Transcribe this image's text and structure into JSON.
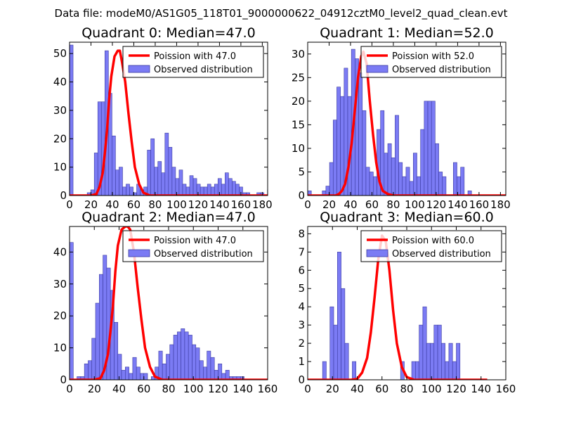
{
  "figure": {
    "suptitle": "Data file: modeM0/AS1G05_118T01_9000000622_04912cztM0_level2_quad_clean.evt"
  },
  "colors": {
    "hist_fill": "#7b7bf4",
    "hist_edge": "#3a3aa0",
    "poisson_line": "#ff0000",
    "axes": "#000000",
    "legend_edge": "#000000"
  },
  "chart_data": [
    {
      "type": "bar",
      "title": "Quadrant 0: Median=47.0",
      "xlim": [
        0,
        185
      ],
      "ylim": [
        0,
        54
      ],
      "xticks": [
        0,
        20,
        40,
        60,
        80,
        100,
        120,
        140,
        160,
        180
      ],
      "yticks": [
        0,
        10,
        20,
        30,
        40,
        50
      ],
      "legend": [
        "Poission with 47.0",
        "Observed distribution"
      ],
      "hist": {
        "name": "Observed distribution",
        "bin_width": 3.3,
        "values": [
          53,
          0,
          0,
          0,
          0,
          1,
          2,
          15,
          33,
          33,
          51,
          36,
          21,
          9,
          10,
          3,
          4,
          3,
          1,
          4,
          2,
          3,
          16,
          20,
          10,
          12,
          8,
          22,
          17,
          10,
          6,
          9,
          4,
          3,
          7,
          6,
          4,
          3,
          3,
          4,
          3,
          4,
          6,
          4,
          8,
          6,
          5,
          4,
          3,
          1,
          1,
          0,
          0,
          1,
          1,
          0,
          2,
          1,
          0,
          0,
          0,
          0,
          1,
          0,
          0,
          0,
          1,
          0,
          0
        ]
      },
      "poisson": {
        "name": "Poission with 47.0",
        "mean": 47.0,
        "x": [
          0,
          20,
          25,
          28,
          31,
          33,
          35,
          37,
          39,
          42,
          45,
          47,
          49,
          52,
          55,
          58,
          61,
          65,
          69,
          75,
          185
        ],
        "y": [
          0,
          0,
          0.5,
          3,
          8,
          15,
          23,
          34,
          42,
          49,
          51,
          51,
          47,
          40,
          29,
          19,
          10,
          4,
          1,
          0,
          0
        ]
      }
    },
    {
      "type": "bar",
      "title": "Quadrant 1: Median=52.0",
      "xlim": [
        0,
        185
      ],
      "ylim": [
        0,
        32.5
      ],
      "xticks": [
        0,
        20,
        40,
        60,
        80,
        100,
        120,
        140,
        160,
        180
      ],
      "yticks": [
        0,
        5,
        10,
        15,
        20,
        25,
        30
      ],
      "legend": [
        "Poission with 52.0",
        "Observed distribution"
      ],
      "hist": {
        "name": "Observed distribution",
        "bin_width": 3.4,
        "values": [
          1,
          0,
          0,
          0,
          1,
          2,
          7,
          16,
          23,
          21,
          27,
          21,
          31,
          29,
          26,
          18,
          6,
          5,
          4,
          14,
          18,
          9,
          11,
          8,
          17,
          7,
          4,
          6,
          3,
          9,
          4,
          14,
          20,
          20,
          20,
          11,
          5,
          4,
          0,
          0,
          7,
          4,
          6,
          0,
          1,
          0,
          0,
          0,
          0,
          0
        ]
      },
      "poisson": {
        "name": "Poission with 52.0",
        "mean": 52.0,
        "x": [
          0,
          26,
          29,
          32,
          35,
          38,
          41,
          44,
          47,
          50,
          52,
          55,
          58,
          61,
          64,
          67,
          70,
          75,
          80,
          185
        ],
        "y": [
          0,
          0,
          0.3,
          1,
          2.5,
          6,
          11,
          18,
          25,
          29.5,
          30.5,
          28,
          20,
          13,
          7,
          3,
          1,
          0.3,
          0,
          0
        ]
      }
    },
    {
      "type": "bar",
      "title": "Quadrant 2: Median=47.0",
      "xlim": [
        0,
        160
      ],
      "ylim": [
        0,
        48
      ],
      "xticks": [
        0,
        20,
        40,
        60,
        80,
        100,
        120,
        140,
        160
      ],
      "yticks": [
        0,
        10,
        20,
        30,
        40
      ],
      "legend": [
        "Poission with 47.0",
        "Observed distribution"
      ],
      "hist": {
        "name": "Observed distribution",
        "bin_width": 3.0,
        "values": [
          43,
          0,
          1,
          1,
          5,
          6,
          13,
          24,
          33,
          39,
          35,
          28,
          18,
          8,
          3,
          4,
          2,
          7,
          4,
          2,
          2,
          0,
          1,
          4,
          9,
          5,
          8,
          11,
          14,
          15,
          16,
          15,
          14,
          11,
          10,
          6,
          4,
          9,
          7,
          3,
          5,
          2,
          3,
          1,
          1,
          1,
          1
        ]
      },
      "poisson": {
        "name": "Poission with 47.0",
        "mean": 47.0,
        "x": [
          0,
          20,
          25,
          28,
          31,
          33,
          35,
          37,
          39,
          42,
          45,
          47,
          49,
          52,
          55,
          58,
          61,
          65,
          69,
          75,
          160
        ],
        "y": [
          0,
          0,
          0.5,
          3,
          8,
          15,
          23,
          34,
          42,
          47,
          48,
          48,
          47,
          40,
          29,
          19,
          10,
          4,
          1,
          0,
          0
        ]
      }
    },
    {
      "type": "bar",
      "title": "Quadrant 3: Median=60.0",
      "xlim": [
        0,
        160
      ],
      "ylim": [
        0,
        8.4
      ],
      "xticks": [
        0,
        20,
        40,
        60,
        80,
        100,
        120,
        140,
        160
      ],
      "yticks": [
        0,
        1,
        2,
        3,
        4,
        5,
        6,
        7,
        8
      ],
      "legend": [
        "Poission with 60.0",
        "Observed distribution"
      ],
      "hist": {
        "name": "Observed distribution",
        "bin_width": 3.0,
        "values": [
          0,
          0,
          0,
          0,
          1,
          0,
          4,
          3,
          7,
          5,
          2,
          0,
          1,
          0,
          0,
          0,
          0,
          0,
          0,
          0,
          0,
          0,
          0,
          0,
          0,
          1,
          0,
          0,
          1,
          1,
          3,
          4,
          2,
          2,
          3,
          3,
          2,
          1,
          2,
          1,
          2,
          0,
          0,
          0,
          0,
          0,
          0
        ]
      },
      "poisson": {
        "name": "Poission with 60.0",
        "mean": 60.0,
        "x": [
          0,
          35,
          40,
          44,
          48,
          51,
          54,
          57,
          60,
          63,
          66,
          69,
          72,
          76,
          80,
          86,
          145
        ],
        "y": [
          0,
          0,
          0.05,
          0.4,
          1.2,
          2.6,
          4.5,
          6.6,
          7.9,
          7.6,
          6,
          3.8,
          2,
          0.7,
          0.15,
          0,
          0
        ]
      }
    }
  ]
}
